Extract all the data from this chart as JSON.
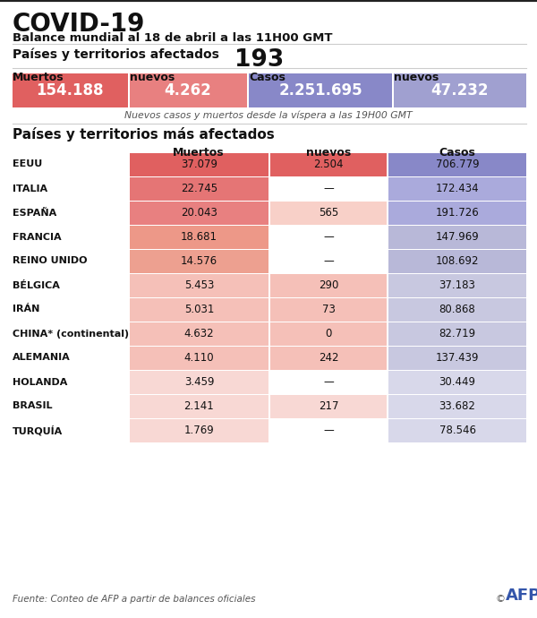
{
  "title": "COVID-19",
  "subtitle": "Balance mundial al 18 de abril a las 11H00 GMT",
  "countries_label": "Países y territorios afectados",
  "countries_count": "193",
  "global_headers": [
    "Muertos",
    "nuevos",
    "Casos",
    "nuevos"
  ],
  "global_values": [
    "154.188",
    "4.262",
    "2.251.695",
    "47.232"
  ],
  "global_note": "Nuevos casos y muertos desde la víspera a las 19H00 GMT",
  "section2_title": "Países y territorios más afectados",
  "countries": [
    "EEUU",
    "ITALIA",
    "ESPAÑA",
    "FRANCIA",
    "REINO UNIDO",
    "BÉLGICA",
    "IRÁN",
    "CHINA* (continental)",
    "ALEMANIA",
    "HOLANDA",
    "BRASIL",
    "TURQUÍA"
  ],
  "muertos": [
    "37.079",
    "22.745",
    "20.043",
    "18.681",
    "14.576",
    "5.453",
    "5.031",
    "4.632",
    "4.110",
    "3.459",
    "2.141",
    "1.769"
  ],
  "nuevos": [
    "2.504",
    "—",
    "565",
    "—",
    "—",
    "290",
    "73",
    "0",
    "242",
    "—",
    "217",
    "—"
  ],
  "casos": [
    "706.779",
    "172.434",
    "191.726",
    "147.969",
    "108.692",
    "37.183",
    "80.868",
    "82.719",
    "137.439",
    "30.449",
    "33.682",
    "78.546"
  ],
  "red_colors": [
    "#e06060",
    "#e57575",
    "#e88080",
    "#ed9888",
    "#eda090",
    "#f5c0b8",
    "#f5c0b8",
    "#f5c0b8",
    "#f5c0b8",
    "#f8d8d4",
    "#f8d8d4",
    "#f8d8d4"
  ],
  "blue_colors": [
    "#8888c8",
    "#aaaadc",
    "#aaaadc",
    "#b8b8d8",
    "#b8b8d8",
    "#c8c8e0",
    "#c8c8e0",
    "#c8c8e0",
    "#c8c8e0",
    "#d8d8ea",
    "#d8d8ea",
    "#d8d8ea"
  ],
  "nuevos_colors_filled": [
    "#e06060",
    "#ffffff",
    "#f8d0c8",
    "#ffffff",
    "#ffffff",
    "#f5c0b8",
    "#f5c0b8",
    "#f5c0b8",
    "#f5c0b8",
    "#ffffff",
    "#f8d8d4",
    "#ffffff"
  ],
  "color_white": "#ffffff",
  "color_bg": "#ffffff",
  "color_black": "#111111",
  "color_gray_text": "#555555",
  "color_red_header": "#e06060",
  "color_red_nuevos": "#e88080",
  "color_blue_header": "#8888c8",
  "color_blue_nuevos": "#a0a0d0",
  "footer": "Fuente: Conteo de AFP a partir de balances oficiales",
  "border_color": "#cccccc"
}
